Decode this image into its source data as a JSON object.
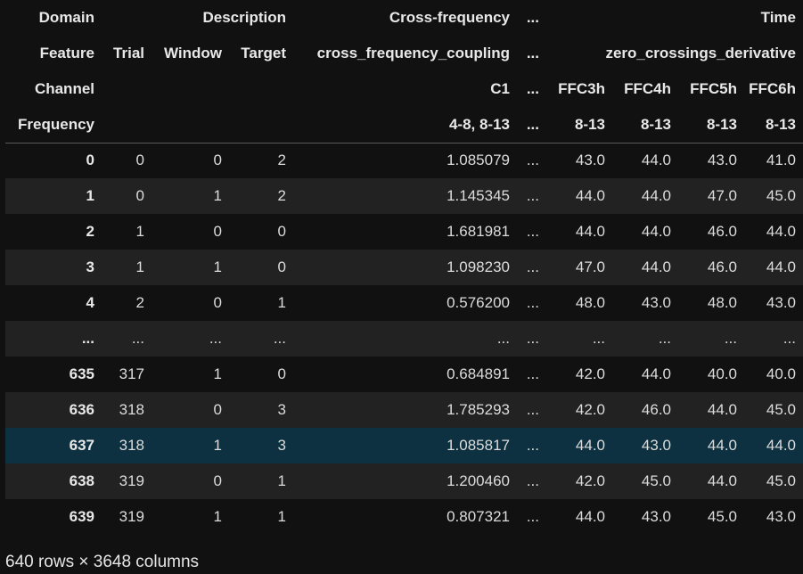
{
  "header_rows": [
    {
      "label": "Domain",
      "description": "Description",
      "cross": "Cross-frequency",
      "ellipsis": "...",
      "time": "Time"
    },
    {
      "label": "Feature",
      "trial": "Trial",
      "window": "Window",
      "target": "Target",
      "cross": "cross_frequency_coupling",
      "ellipsis": "...",
      "time": "zero_crossings_derivative"
    },
    {
      "label": "Channel",
      "cross": "C1",
      "ellipsis": "...",
      "ffc3": "FFC3h",
      "ffc4": "FFC4h",
      "ffc5": "FFC5h",
      "ffc6": "FFC6h"
    },
    {
      "label": "Frequency",
      "cross": "4-8, 8-13",
      "ellipsis": "...",
      "ffc3": "8-13",
      "ffc4": "8-13",
      "ffc5": "8-13",
      "ffc6": "8-13"
    }
  ],
  "rows": [
    {
      "index": "0",
      "trial": "0",
      "window": "0",
      "target": "2",
      "cfc": "1.085079",
      "ell": "...",
      "ffc3": "43.0",
      "ffc4": "44.0",
      "ffc5": "43.0",
      "ffc6": "41.0"
    },
    {
      "index": "1",
      "trial": "0",
      "window": "1",
      "target": "2",
      "cfc": "1.145345",
      "ell": "...",
      "ffc3": "44.0",
      "ffc4": "44.0",
      "ffc5": "47.0",
      "ffc6": "45.0"
    },
    {
      "index": "2",
      "trial": "1",
      "window": "0",
      "target": "0",
      "cfc": "1.681981",
      "ell": "...",
      "ffc3": "44.0",
      "ffc4": "44.0",
      "ffc5": "46.0",
      "ffc6": "44.0"
    },
    {
      "index": "3",
      "trial": "1",
      "window": "1",
      "target": "0",
      "cfc": "1.098230",
      "ell": "...",
      "ffc3": "47.0",
      "ffc4": "44.0",
      "ffc5": "46.0",
      "ffc6": "44.0"
    },
    {
      "index": "4",
      "trial": "2",
      "window": "0",
      "target": "1",
      "cfc": "0.576200",
      "ell": "...",
      "ffc3": "48.0",
      "ffc4": "43.0",
      "ffc5": "48.0",
      "ffc6": "43.0"
    },
    {
      "index": "...",
      "trial": "...",
      "window": "...",
      "target": "...",
      "cfc": "...",
      "ell": "...",
      "ffc3": "...",
      "ffc4": "...",
      "ffc5": "...",
      "ffc6": "..."
    },
    {
      "index": "635",
      "trial": "317",
      "window": "1",
      "target": "0",
      "cfc": "0.684891",
      "ell": "...",
      "ffc3": "42.0",
      "ffc4": "44.0",
      "ffc5": "40.0",
      "ffc6": "40.0"
    },
    {
      "index": "636",
      "trial": "318",
      "window": "0",
      "target": "3",
      "cfc": "1.785293",
      "ell": "...",
      "ffc3": "42.0",
      "ffc4": "46.0",
      "ffc5": "44.0",
      "ffc6": "45.0"
    },
    {
      "index": "637",
      "trial": "318",
      "window": "1",
      "target": "3",
      "cfc": "1.085817",
      "ell": "...",
      "ffc3": "44.0",
      "ffc4": "43.0",
      "ffc5": "44.0",
      "ffc6": "44.0"
    },
    {
      "index": "638",
      "trial": "319",
      "window": "0",
      "target": "1",
      "cfc": "1.200460",
      "ell": "...",
      "ffc3": "42.0",
      "ffc4": "45.0",
      "ffc5": "44.0",
      "ffc6": "45.0"
    },
    {
      "index": "639",
      "trial": "319",
      "window": "1",
      "target": "1",
      "cfc": "0.807321",
      "ell": "...",
      "ffc3": "44.0",
      "ffc4": "43.0",
      "ffc5": "45.0",
      "ffc6": "43.0"
    }
  ],
  "footer": "640 rows × 3648 columns",
  "colors": {
    "background": "#111111",
    "row_alt": "#222222",
    "row_hover": "#0d3140",
    "text": "#e6e6e6"
  }
}
